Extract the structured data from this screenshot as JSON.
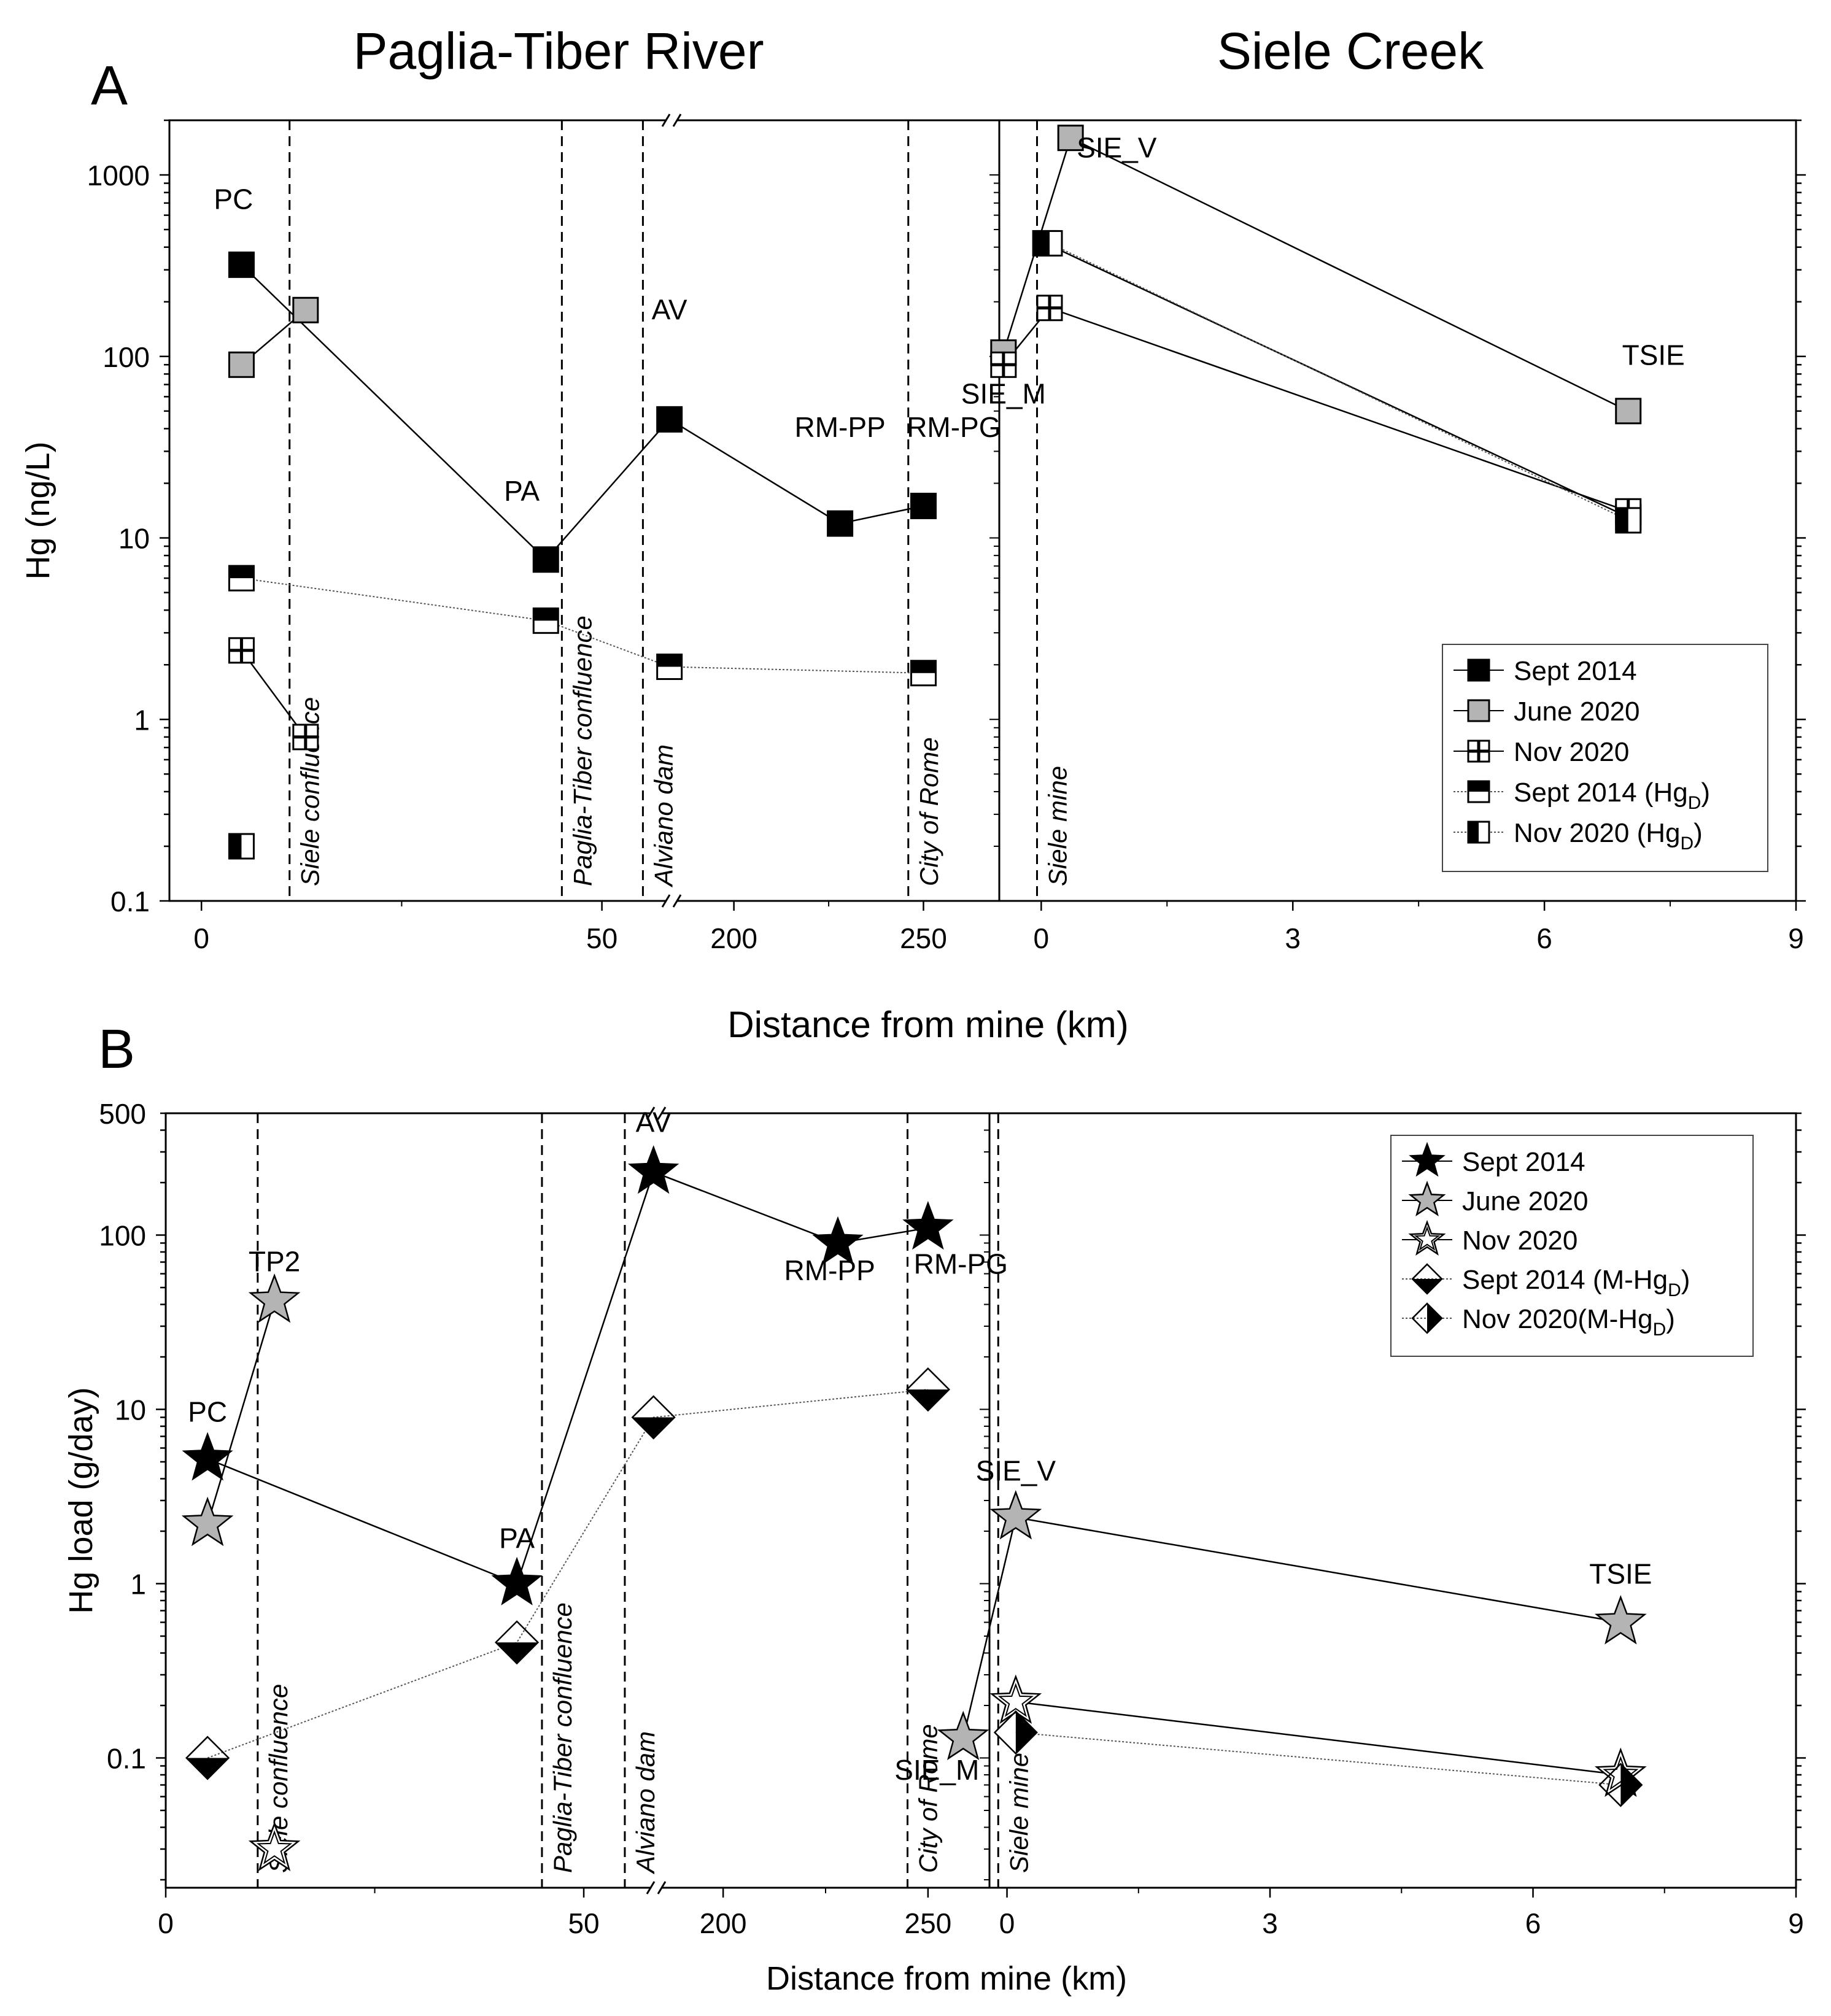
{
  "colors": {
    "black": "#000000",
    "gray": "#b4b4b4",
    "white": "#ffffff",
    "grid": "#000000"
  },
  "chart_data": [
    {
      "id": "A",
      "type": "scatter",
      "panel_label": "A",
      "titles": {
        "left": "Paglia-Tiber River",
        "right": "Siele Creek"
      },
      "ylabel": "Hg (ng/L)",
      "xlabel": "Distance from mine (km)",
      "yscale": "log",
      "ylim": [
        0.1,
        2000
      ],
      "ytick_labels": [
        "0.1",
        "1",
        "10",
        "100",
        "1000"
      ],
      "xlim_left_segment1": [
        -4,
        58
      ],
      "xlim_left_segment2": [
        185,
        270
      ],
      "xlim_right": [
        -0.5,
        9
      ],
      "xtick_labels_left": [
        "0",
        "50",
        "200",
        "250"
      ],
      "xtick_labels_right": [
        "0",
        "3",
        "6",
        "9"
      ],
      "vlines": [
        {
          "panel": "left",
          "x": 11,
          "label": "Siele confluence"
        },
        {
          "panel": "left",
          "x": 45,
          "label": "Paglia-Tiber confluence"
        },
        {
          "panel": "left",
          "x": 176,
          "label": "Alviano dam"
        },
        {
          "panel": "left",
          "x": 246,
          "label": "City of Rome"
        },
        {
          "panel": "right",
          "x": -0.05,
          "label": "Siele mine"
        }
      ],
      "site_labels": [
        {
          "panel": "left",
          "text": "PC",
          "x": 4,
          "y": 650
        },
        {
          "panel": "left",
          "text": "PA",
          "x": 40,
          "y": 16
        },
        {
          "panel": "left",
          "text": "AV",
          "x": 183,
          "y": 160
        },
        {
          "panel": "left",
          "text": "RM-PP",
          "x": 228,
          "y": 36
        },
        {
          "panel": "left",
          "text": "RM-PG",
          "x": 258,
          "y": 36
        },
        {
          "panel": "right",
          "text": "SIE_V",
          "x": 0.9,
          "y": 1250
        },
        {
          "panel": "right",
          "text": "SIE_M",
          "x": -0.45,
          "y": 55
        },
        {
          "panel": "right",
          "text": "TSIE",
          "x": 7.3,
          "y": 90
        }
      ],
      "legend": [
        "Sept 2014",
        "June 2020",
        "Nov 2020",
        "Sept 2014 (Hg",
        "Nov 2020 (Hg"
      ],
      "legend_subscript": "D",
      "legend_close": ")",
      "series": [
        {
          "name": "Sept 2014",
          "marker": "square_black",
          "line": "solid",
          "left": [
            [
              5,
              320
            ],
            [
              43,
              7.6
            ],
            [
              183,
              45
            ],
            [
              228,
              12
            ],
            [
              250,
              15
            ]
          ],
          "right": [
            [
              0.05,
              420
            ],
            [
              7,
              13
            ]
          ]
        },
        {
          "name": "June 2020",
          "marker": "square_gray",
          "line": "solid",
          "left": [
            [
              5,
              90
            ],
            [
              13,
              180
            ]
          ],
          "right": [
            [
              -0.45,
              105
            ],
            [
              0.35,
              1600
            ],
            [
              7,
              50
            ]
          ]
        },
        {
          "name": "Nov 2020",
          "marker": "square_cross",
          "line": "solid",
          "left": [
            [
              5,
              2.4
            ],
            [
              13,
              0.8
            ]
          ],
          "right": [
            [
              -0.45,
              90
            ],
            [
              0.1,
              185
            ],
            [
              7,
              14
            ]
          ]
        },
        {
          "name": "Sept 2014 (HgD)",
          "marker": "square_halftop",
          "line": "dotted",
          "left": [
            [
              5,
              6
            ],
            [
              43,
              3.5
            ],
            [
              183,
              1.95
            ],
            [
              250,
              1.8
            ]
          ],
          "right": []
        },
        {
          "name": "Nov 2020 (HgD)",
          "marker": "square_halfleft",
          "line": "dotted",
          "left": [
            [
              5,
              0.2
            ]
          ],
          "right": [
            [
              0.1,
              420
            ],
            [
              7,
              12.5
            ]
          ]
        }
      ]
    },
    {
      "id": "B",
      "type": "scatter",
      "panel_label": "B",
      "ylabel": "Hg load (g/day)",
      "xlabel": "Distance from mine (km)",
      "yscale": "log",
      "ylim": [
        0.018,
        500
      ],
      "ytick_labels": [
        "0.1",
        "1",
        "10",
        "100",
        "500"
      ],
      "xlim_left_segment1": [
        0,
        58
      ],
      "xlim_left_segment2": [
        185,
        265
      ],
      "xlim_right": [
        -0.2,
        9
      ],
      "xtick_labels_left": [
        "0",
        "50",
        "200",
        "250"
      ],
      "xtick_labels_right": [
        "0",
        "3",
        "6",
        "9"
      ],
      "vlines": [
        {
          "panel": "left",
          "x": 11,
          "label": "Siele confluence"
        },
        {
          "panel": "left",
          "x": 45,
          "label": "Paglia-Tiber confluence"
        },
        {
          "panel": "left",
          "x": 176,
          "label": "Alviano dam"
        },
        {
          "panel": "left",
          "x": 245,
          "label": "City of Rome"
        },
        {
          "panel": "right",
          "x": -0.1,
          "label": "Siele mine"
        }
      ],
      "site_labels": [
        {
          "panel": "left",
          "text": "TP2",
          "x": 13,
          "y": 62
        },
        {
          "panel": "left",
          "text": "PC",
          "x": 5,
          "y": 8.5
        },
        {
          "panel": "left",
          "text": "PA",
          "x": 42,
          "y": 1.6
        },
        {
          "panel": "left",
          "text": "AV",
          "x": 183,
          "y": 390
        },
        {
          "panel": "left",
          "text": "RM-PP",
          "x": 226,
          "y": 55
        },
        {
          "panel": "left",
          "text": "RM-PG",
          "x": 258,
          "y": 60
        },
        {
          "panel": "right",
          "text": "SIE_V",
          "x": 0.1,
          "y": 3.9
        },
        {
          "panel": "right",
          "text": "SIE_M",
          "x": -0.8,
          "y": 0.075
        },
        {
          "panel": "right",
          "text": "TSIE",
          "x": 7,
          "y": 1
        }
      ],
      "legend": [
        "Sept 2014",
        "June 2020",
        "Nov 2020",
        "Sept 2014 (M-Hg",
        "Nov 2020(M-Hg"
      ],
      "legend_subscript": "D",
      "legend_close": ")",
      "series": [
        {
          "name": "Sept 2014",
          "marker": "star_black",
          "line": "solid",
          "left": [
            [
              5,
              5.2
            ],
            [
              42,
              1.0
            ],
            [
              183,
              230
            ],
            [
              228,
              90
            ],
            [
              250,
              110
            ]
          ],
          "right": []
        },
        {
          "name": "June 2020",
          "marker": "star_gray",
          "line": "solid",
          "left": [
            [
              5,
              2.2
            ],
            [
              13,
              42
            ]
          ],
          "right": [
            [
              -0.5,
              0.13
            ],
            [
              0.1,
              2.4
            ],
            [
              7,
              0.6
            ]
          ]
        },
        {
          "name": "Nov 2020",
          "marker": "star_open",
          "line": "solid",
          "left": [
            [
              13,
              0.03
            ]
          ],
          "right": [
            [
              0.1,
              0.21
            ],
            [
              7,
              0.08
            ]
          ]
        },
        {
          "name": "Sept 2014 (M-HgD)",
          "marker": "diamond_bottom",
          "line": "dotted",
          "left": [
            [
              5,
              0.1
            ],
            [
              42,
              0.46
            ],
            [
              183,
              9
            ],
            [
              250,
              13
            ]
          ],
          "right": []
        },
        {
          "name": "Nov 2020(M-HgD)",
          "marker": "diamond_right",
          "line": "dotted",
          "left": [],
          "right": [
            [
              0.1,
              0.14
            ],
            [
              7,
              0.07
            ]
          ]
        }
      ]
    }
  ]
}
